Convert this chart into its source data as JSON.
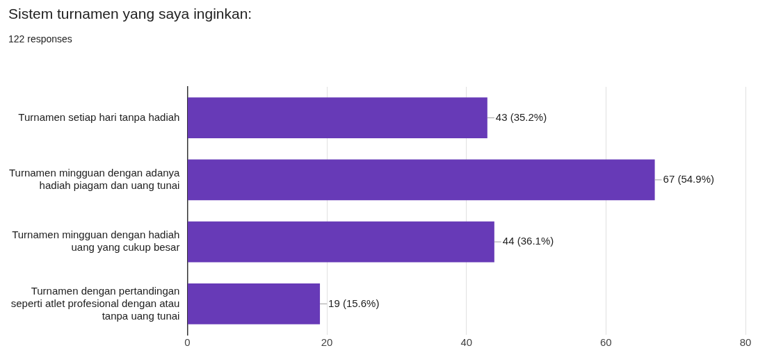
{
  "chart_data": {
    "type": "bar",
    "title": "Sistem turnamen yang saya inginkan:",
    "subtitle": "122 responses",
    "orientation": "horizontal",
    "categories": [
      "Turnamen setiap hari tanpa hadiah",
      "Turnamen mingguan dengan adanya hadiah piagam dan uang tunai",
      "Turnamen mingguan dengan hadiah uang yang cukup besar",
      "Turnamen dengan pertandingan seperti atlet profesional dengan atau tanpa uang tunai"
    ],
    "values": [
      43,
      67,
      44,
      19
    ],
    "color": "#673ab7",
    "value_labels": [
      "43 (35.2%)",
      "67 (54.9%)",
      "44 (36.1%)",
      "19 (15.6%)"
    ],
    "xlim": [
      0,
      80
    ],
    "xticks": [
      0,
      20,
      40,
      60,
      80
    ],
    "grid": "x",
    "legend": false
  }
}
